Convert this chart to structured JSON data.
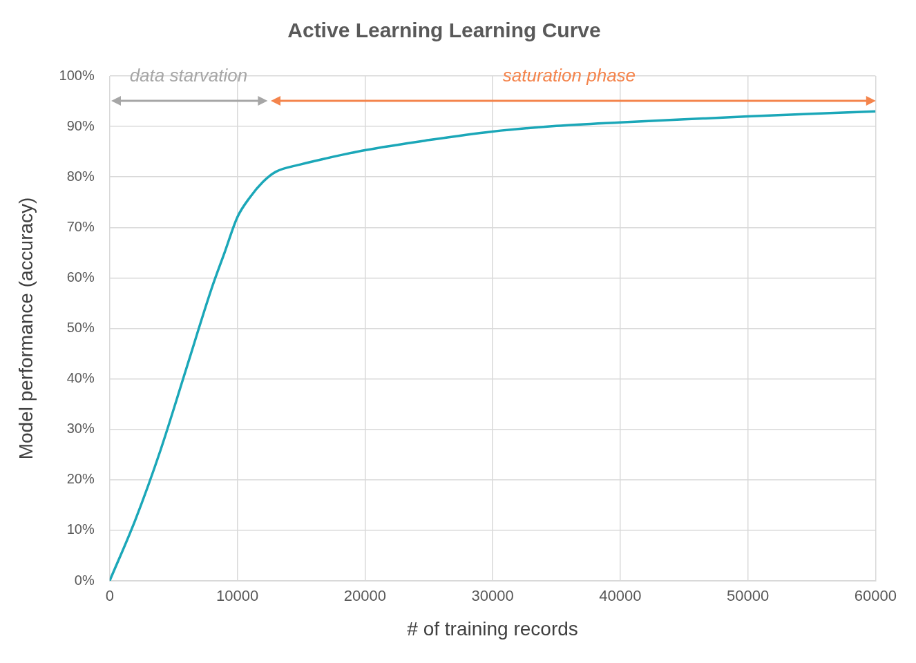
{
  "chart_data": {
    "type": "line",
    "title": "Active Learning Learning Curve",
    "xlabel": "# of training records",
    "ylabel": "Model performance (accuracy)",
    "x": [
      0,
      2000,
      4000,
      6000,
      8000,
      9000,
      10000,
      11000,
      12000,
      13000,
      15000,
      17000,
      20000,
      25000,
      30000,
      35000,
      40000,
      45000,
      50000,
      55000,
      60000
    ],
    "series": [
      {
        "color": "#1ba7b8",
        "values": [
          0,
          12,
          26,
          42,
          58,
          65,
          72,
          76,
          79,
          81,
          82.5,
          83.7,
          85.3,
          87.3,
          89,
          90.1,
          90.8,
          91.4,
          92,
          92.5,
          93
        ]
      }
    ],
    "xlim": [
      0,
      60000
    ],
    "xticks": [
      0,
      10000,
      20000,
      30000,
      40000,
      50000,
      60000
    ],
    "ylim": [
      0,
      100
    ],
    "yticks": [
      {
        "value": 0,
        "label": "0%"
      },
      {
        "value": 10,
        "label": "10%"
      },
      {
        "value": 20,
        "label": "20%"
      },
      {
        "value": 30,
        "label": "30%"
      },
      {
        "value": 40,
        "label": "40%"
      },
      {
        "value": 50,
        "label": "50%"
      },
      {
        "value": 60,
        "label": "60%"
      },
      {
        "value": 70,
        "label": "70%"
      },
      {
        "value": 80,
        "label": "80%"
      },
      {
        "value": 90,
        "label": "90%"
      },
      {
        "value": 100,
        "label": "100%"
      }
    ],
    "annotations": [
      "data starvation",
      "saturation phase"
    ],
    "grid": true,
    "legend": false,
    "marker": "none",
    "line_style": "solid"
  }
}
